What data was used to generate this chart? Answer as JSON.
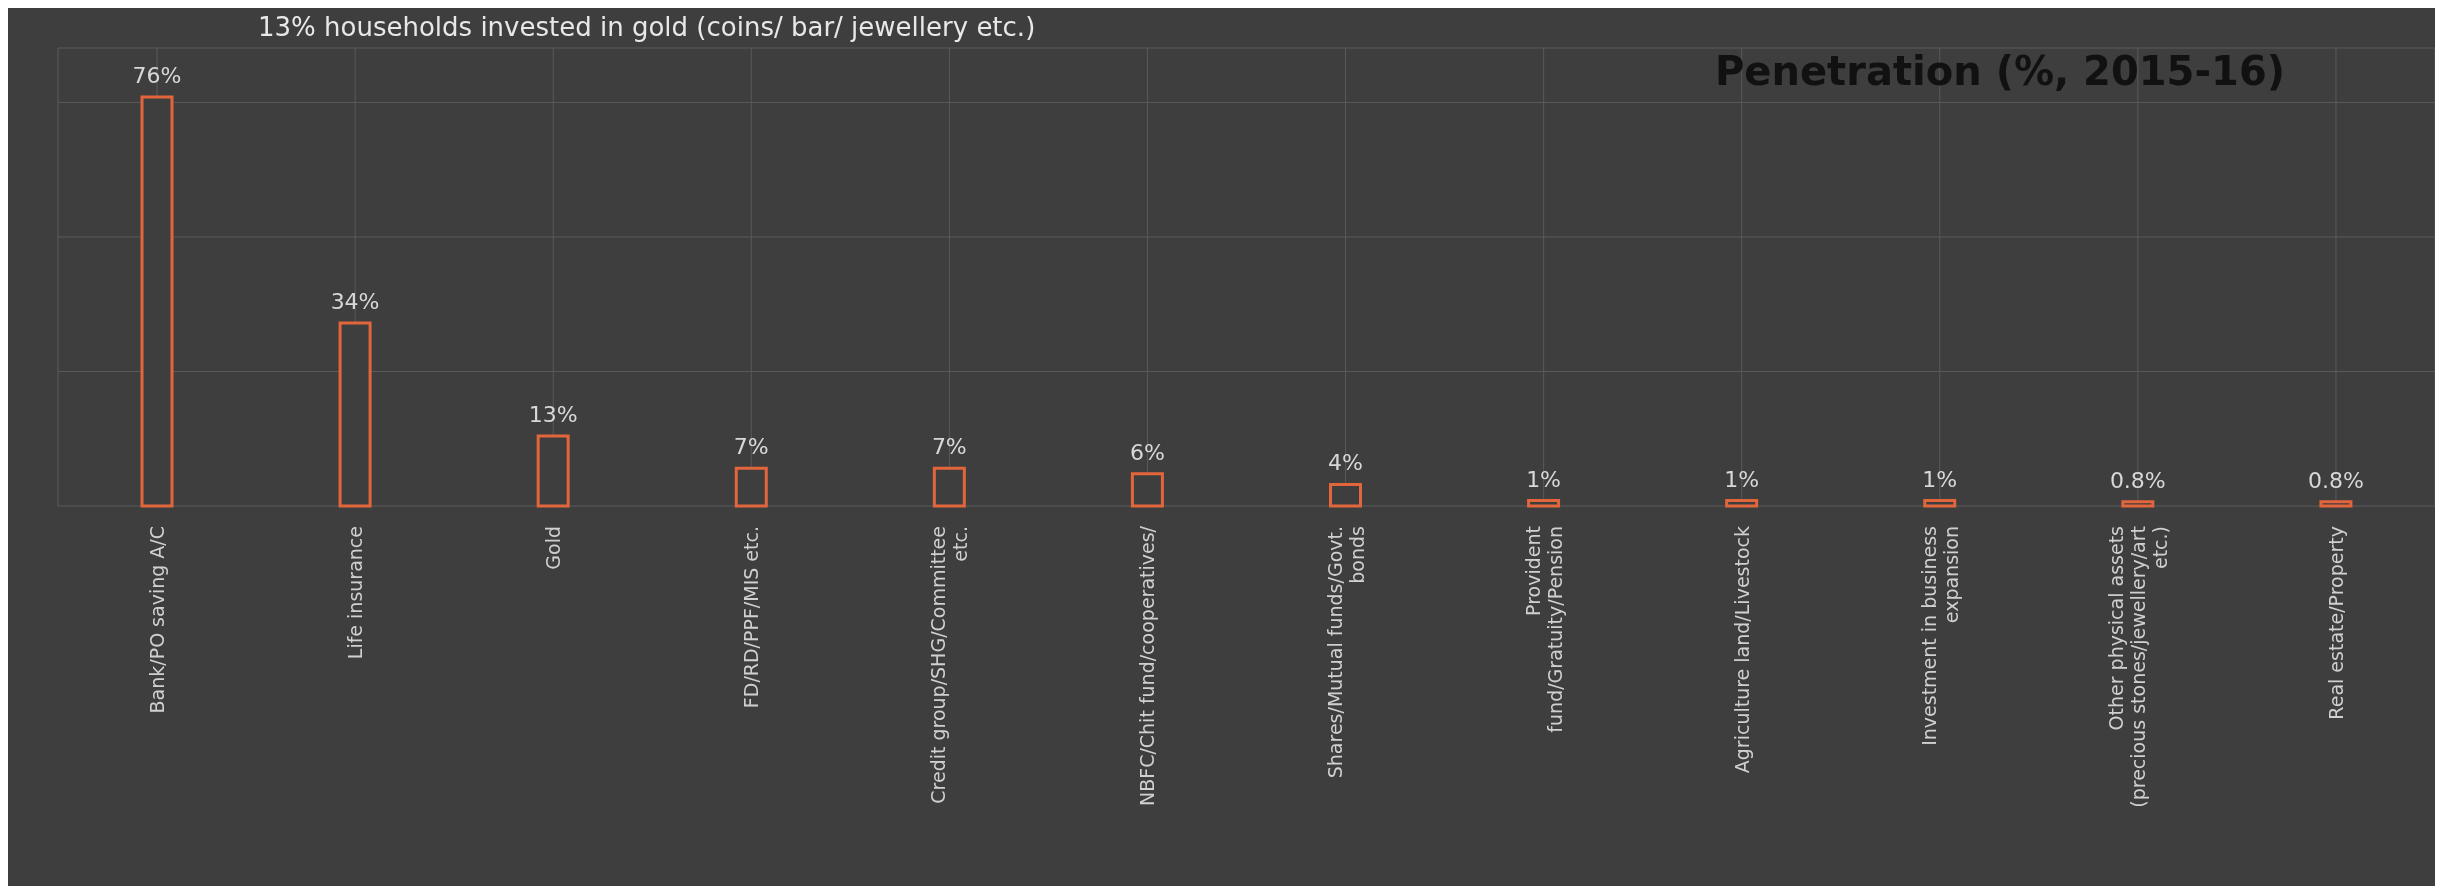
{
  "chart_data": {
    "type": "bar",
    "title": "Penetration (%, 2015-16)",
    "annotations": [
      "13% households invested in gold (coins/ bar/ jewellery etc.)"
    ],
    "categories": [
      "Bank/PO saving A/C",
      "Life insurance",
      "Gold",
      "FD/RD/PPF/MIS etc.",
      "Credit group/SHG/Committee etc.",
      "NBFC/Chit fund/cooperatives/",
      "Shares/Mutual funds/Govt. bonds",
      "Provident fund/Gratuity/Pension",
      "Agriculture land/Livestock",
      "Investment in business expansion",
      "Other physical assets (precious stones/jewellery/art etc.)",
      "Real estate/Property"
    ],
    "values": [
      76,
      34,
      13,
      7,
      7,
      6,
      4,
      1,
      1,
      1,
      0.8,
      0.8
    ],
    "value_labels": [
      "76%",
      "34%",
      "13%",
      "7%",
      "7%",
      "6%",
      "4%",
      "1%",
      "1%",
      "1%",
      "0.8%",
      "0.8%"
    ],
    "color": "#e2653c",
    "grid": true
  }
}
